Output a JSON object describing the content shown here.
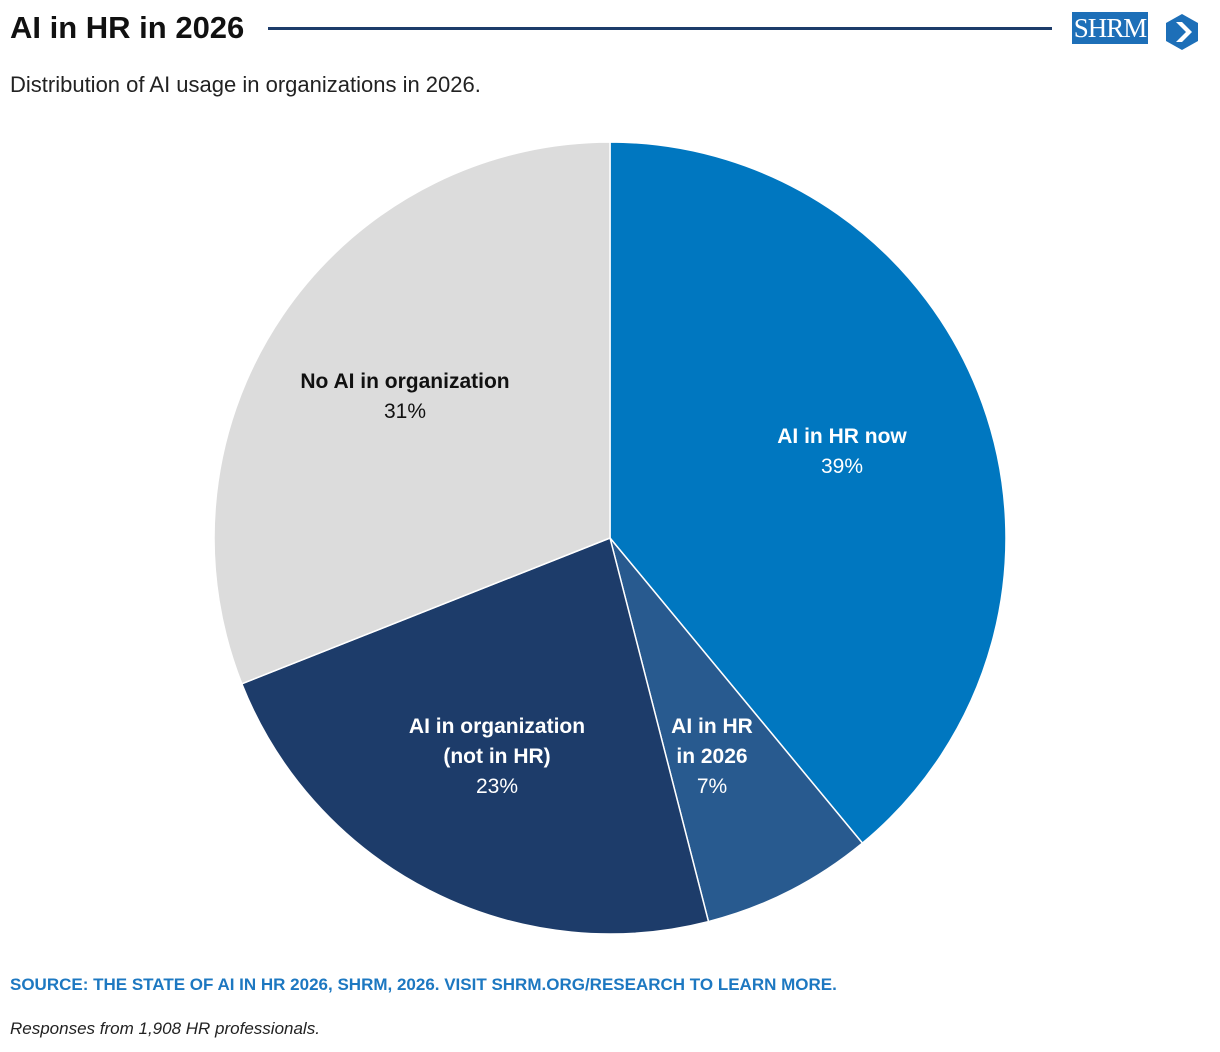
{
  "logo": "SHRM",
  "chart_data": {
    "type": "pie",
    "title": "AI in HR in 2026",
    "subtitle": "Distribution of AI usage in organizations in 2026.",
    "categories": [
      "AI in HR now",
      "AI in HR\nin 2026",
      "AI in organization\n(not in HR)",
      "No AI in organization"
    ],
    "values": [
      39,
      7,
      23,
      31
    ],
    "value_labels": [
      "39%",
      "7%",
      "23%",
      "31%"
    ],
    "colors": [
      "#0077c0",
      "#285a8f",
      "#1d3c6a",
      "#dcdcdc"
    ],
    "source": "SOURCE: THE STATE OF AI IN HR 2026, SHRM, 2026. VISIT SHRM.ORG/RESEARCH TO LEARN MORE.",
    "note": "Responses from 1,908 HR professionals."
  }
}
